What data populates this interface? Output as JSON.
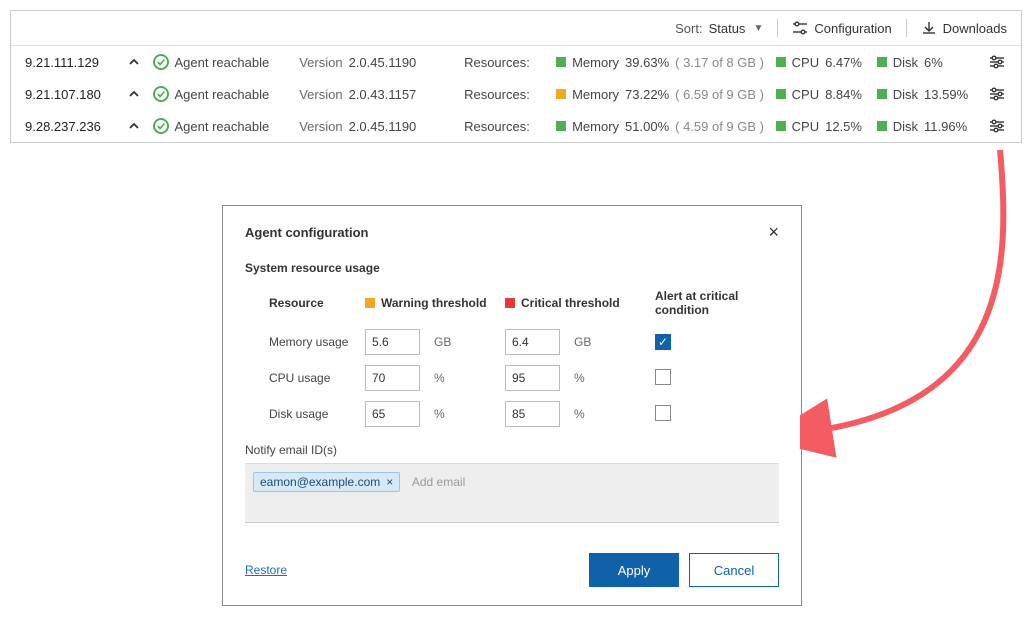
{
  "colors": {
    "ok_green": "#4caf50",
    "warn_orange": "#f5a623",
    "crit_red": "#e53935",
    "primary_blue": "#0f62a8",
    "link_blue": "#1a6fc4",
    "arrow_red": "#f25c62"
  },
  "toolbar": {
    "sort_label": "Sort:",
    "sort_value": "Status",
    "configuration_label": "Configuration",
    "downloads_label": "Downloads"
  },
  "agents": [
    {
      "ip": "9.21.111.129",
      "status_text": "Agent reachable",
      "version_label": "Version",
      "version": "2.0.45.1190",
      "resources_label": "Resources:",
      "memory": {
        "label": "Memory",
        "pct": "39.63%",
        "detail": "( 3.17 of 8 GB )",
        "color": "#4caf50"
      },
      "cpu": {
        "label": "CPU",
        "pct": "6.47%",
        "color": "#4caf50"
      },
      "disk": {
        "label": "Disk",
        "pct": "6%",
        "color": "#4caf50"
      }
    },
    {
      "ip": "9.21.107.180",
      "status_text": "Agent reachable",
      "version_label": "Version",
      "version": "2.0.43.1157",
      "resources_label": "Resources:",
      "memory": {
        "label": "Memory",
        "pct": "73.22%",
        "detail": "( 6.59 of 9 GB )",
        "color": "#f5a623"
      },
      "cpu": {
        "label": "CPU",
        "pct": "8.84%",
        "color": "#4caf50"
      },
      "disk": {
        "label": "Disk",
        "pct": "13.59%",
        "color": "#4caf50"
      }
    },
    {
      "ip": "9.28.237.236",
      "status_text": "Agent reachable",
      "version_label": "Version",
      "version": "2.0.45.1190",
      "resources_label": "Resources:",
      "memory": {
        "label": "Memory",
        "pct": "51.00%",
        "detail": "( 4.59 of 9 GB )",
        "color": "#4caf50"
      },
      "cpu": {
        "label": "CPU",
        "pct": "12.5%",
        "color": "#4caf50"
      },
      "disk": {
        "label": "Disk",
        "pct": "11.96%",
        "color": "#4caf50"
      }
    }
  ],
  "dialog": {
    "title": "Agent configuration",
    "section_title": "System resource usage",
    "headers": {
      "resource": "Resource",
      "warning": "Warning threshold",
      "critical": "Critical threshold",
      "alert": "Alert at critical condition"
    },
    "rows": [
      {
        "name": "Memory usage",
        "warn": "5.6",
        "warn_unit": "GB",
        "crit": "6.4",
        "crit_unit": "GB",
        "alert": true
      },
      {
        "name": "CPU usage",
        "warn": "70",
        "warn_unit": "%",
        "crit": "95",
        "crit_unit": "%",
        "alert": false
      },
      {
        "name": "Disk usage",
        "warn": "65",
        "warn_unit": "%",
        "crit": "85",
        "crit_unit": "%",
        "alert": false
      }
    ],
    "email_label": "Notify email ID(s)",
    "email_chips": [
      "eamon@example.com"
    ],
    "email_placeholder": "Add email",
    "restore_label": "Restore",
    "apply_label": "Apply",
    "cancel_label": "Cancel"
  }
}
